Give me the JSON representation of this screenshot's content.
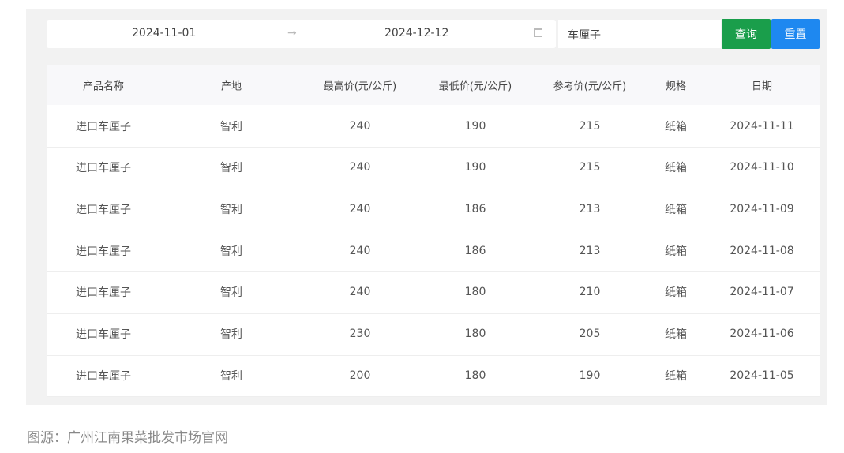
{
  "filters": {
    "start_date": "2024-11-01",
    "end_date": "2024-12-12",
    "keyword": "车厘子",
    "query_label": "查询",
    "reset_label": "重置",
    "query_color": "#1a9e4b",
    "reset_color": "#1e88f0"
  },
  "table": {
    "headers": [
      "产品名称",
      "产地",
      "最高价(元/公斤)",
      "最低价(元/公斤)",
      "参考价(元/公斤)",
      "规格",
      "日期"
    ],
    "rows": [
      [
        "进口车厘子",
        "智利",
        "240",
        "190",
        "215",
        "纸箱",
        "2024-11-11"
      ],
      [
        "进口车厘子",
        "智利",
        "240",
        "190",
        "215",
        "纸箱",
        "2024-11-10"
      ],
      [
        "进口车厘子",
        "智利",
        "240",
        "186",
        "213",
        "纸箱",
        "2024-11-09"
      ],
      [
        "进口车厘子",
        "智利",
        "240",
        "186",
        "213",
        "纸箱",
        "2024-11-08"
      ],
      [
        "进口车厘子",
        "智利",
        "240",
        "180",
        "210",
        "纸箱",
        "2024-11-07"
      ],
      [
        "进口车厘子",
        "智利",
        "230",
        "180",
        "205",
        "纸箱",
        "2024-11-06"
      ],
      [
        "进口车厘子",
        "智利",
        "200",
        "180",
        "190",
        "纸箱",
        "2024-11-05"
      ]
    ]
  },
  "caption": "图源：广州江南果菜批发市场官网"
}
